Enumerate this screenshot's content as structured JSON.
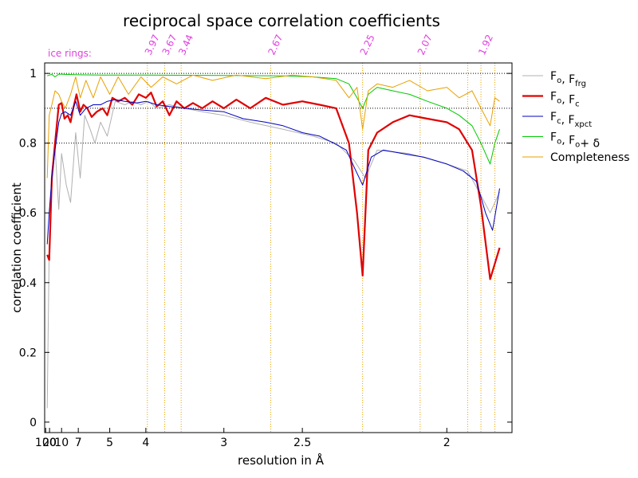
{
  "chart_data": {
    "type": "line",
    "title": "reciprocal space correlation coefficients",
    "xlabel": "resolution in Å",
    "ylabel": "correlation coefficient",
    "x_axis_scale": "1/d^2",
    "xlim_resolution": [
      -43.0,
      1.855
    ],
    "ylim": [
      -0.03,
      1.03
    ],
    "x_ticks": [
      {
        "label": "100",
        "d": 100
      },
      {
        "label": "20",
        "d": 20
      },
      {
        "label": "10",
        "d": 10
      },
      {
        "label": "7",
        "d": 7
      },
      {
        "label": "5",
        "d": 5
      },
      {
        "label": "4",
        "d": 4
      },
      {
        "label": "3",
        "d": 3
      },
      {
        "label": "2.5",
        "d": 2.5
      },
      {
        "label": "2",
        "d": 2
      }
    ],
    "y_ticks": [
      "0",
      "0.2",
      "0.4",
      "0.6",
      "0.8",
      "1"
    ],
    "grid_y": [
      0.8,
      0.9,
      1.0
    ],
    "ice_rings": {
      "label": "ice rings:",
      "rings": [
        {
          "label": "3.97",
          "d": 3.97
        },
        {
          "label": "3.67",
          "d": 3.67
        },
        {
          "label": "3.44",
          "d": 3.44
        },
        {
          "label": "2.67",
          "d": 2.67
        },
        {
          "label": "2.25",
          "d": 2.25
        },
        {
          "label": "2.07",
          "d": 2.07
        },
        {
          "label": "1.92",
          "d": 1.92
        },
        {
          "label": "",
          "d": 1.95
        },
        {
          "label": "",
          "d": 1.89
        }
      ]
    },
    "legend_position": "right",
    "series": [
      {
        "name": "Fo, Ffrg",
        "legend": {
          "main": "F",
          "sub1": "o",
          "mid": ", F",
          "sub2": "frg",
          "tail": ""
        },
        "color": "#b0b0b0",
        "stroke_width": 1,
        "points": [
          [
            31,
            0.04
          ],
          [
            21,
            0.5
          ],
          [
            16,
            0.72
          ],
          [
            13,
            0.79
          ],
          [
            11,
            0.61
          ],
          [
            10,
            0.77
          ],
          [
            8.8,
            0.68
          ],
          [
            8,
            0.63
          ],
          [
            7.3,
            0.83
          ],
          [
            6.8,
            0.7
          ],
          [
            6.4,
            0.88
          ],
          [
            6.0,
            0.84
          ],
          [
            5.7,
            0.8
          ],
          [
            5.4,
            0.86
          ],
          [
            5.1,
            0.82
          ],
          [
            4.8,
            0.92
          ],
          [
            4.5,
            0.91
          ],
          [
            4.3,
            0.92
          ],
          [
            4.1,
            0.91
          ],
          [
            3.95,
            0.92
          ],
          [
            3.8,
            0.9
          ],
          [
            3.6,
            0.91
          ],
          [
            3.4,
            0.9
          ],
          [
            3.2,
            0.89
          ],
          [
            3.0,
            0.88
          ],
          [
            2.8,
            0.86
          ],
          [
            2.6,
            0.84
          ],
          [
            2.45,
            0.82
          ],
          [
            2.35,
            0.8
          ],
          [
            2.28,
            0.75
          ],
          [
            2.24,
            0.7
          ],
          [
            2.2,
            0.78
          ],
          [
            2.1,
            0.77
          ],
          [
            2.0,
            0.74
          ],
          [
            1.95,
            0.72
          ],
          [
            1.92,
            0.65
          ],
          [
            1.9,
            0.6
          ],
          [
            1.88,
            0.66
          ]
        ]
      },
      {
        "name": "Fo, Fc",
        "legend": {
          "main": "F",
          "sub1": "o",
          "mid": ", F",
          "sub2": "c",
          "tail": ""
        },
        "color": "#e00000",
        "stroke_width": 2.2,
        "points": [
          [
            31,
            0.48
          ],
          [
            21,
            0.465
          ],
          [
            16,
            0.7
          ],
          [
            13,
            0.8
          ],
          [
            11,
            0.91
          ],
          [
            10,
            0.915
          ],
          [
            9.2,
            0.87
          ],
          [
            8.5,
            0.88
          ],
          [
            8,
            0.86
          ],
          [
            7.6,
            0.9
          ],
          [
            7.2,
            0.94
          ],
          [
            6.8,
            0.89
          ],
          [
            6.5,
            0.91
          ],
          [
            6.2,
            0.9
          ],
          [
            5.9,
            0.875
          ],
          [
            5.6,
            0.89
          ],
          [
            5.3,
            0.9
          ],
          [
            5.1,
            0.88
          ],
          [
            4.9,
            0.93
          ],
          [
            4.7,
            0.92
          ],
          [
            4.5,
            0.93
          ],
          [
            4.3,
            0.91
          ],
          [
            4.15,
            0.94
          ],
          [
            4.0,
            0.93
          ],
          [
            3.9,
            0.945
          ],
          [
            3.8,
            0.905
          ],
          [
            3.7,
            0.92
          ],
          [
            3.6,
            0.88
          ],
          [
            3.5,
            0.92
          ],
          [
            3.4,
            0.9
          ],
          [
            3.3,
            0.915
          ],
          [
            3.2,
            0.9
          ],
          [
            3.1,
            0.92
          ],
          [
            3.0,
            0.9
          ],
          [
            2.9,
            0.925
          ],
          [
            2.8,
            0.9
          ],
          [
            2.7,
            0.93
          ],
          [
            2.6,
            0.91
          ],
          [
            2.5,
            0.92
          ],
          [
            2.42,
            0.91
          ],
          [
            2.35,
            0.9
          ],
          [
            2.3,
            0.8
          ],
          [
            2.27,
            0.6
          ],
          [
            2.25,
            0.42
          ],
          [
            2.23,
            0.78
          ],
          [
            2.2,
            0.83
          ],
          [
            2.15,
            0.86
          ],
          [
            2.1,
            0.88
          ],
          [
            2.05,
            0.87
          ],
          [
            2.0,
            0.86
          ],
          [
            1.97,
            0.84
          ],
          [
            1.94,
            0.78
          ],
          [
            1.92,
            0.62
          ],
          [
            1.9,
            0.41
          ],
          [
            1.88,
            0.5
          ]
        ]
      },
      {
        "name": "Fc, Fxpct",
        "legend": {
          "main": "F",
          "sub1": "c",
          "mid": ", F",
          "sub2": "xpct",
          "tail": ""
        },
        "color": "#0000c0",
        "stroke_width": 1,
        "points": [
          [
            31,
            0.51
          ],
          [
            21,
            0.6
          ],
          [
            16,
            0.7
          ],
          [
            13,
            0.78
          ],
          [
            11,
            0.86
          ],
          [
            10,
            0.885
          ],
          [
            9,
            0.89
          ],
          [
            8,
            0.88
          ],
          [
            7.3,
            0.92
          ],
          [
            6.8,
            0.88
          ],
          [
            6.3,
            0.9
          ],
          [
            5.8,
            0.91
          ],
          [
            5.4,
            0.91
          ],
          [
            5.1,
            0.92
          ],
          [
            4.8,
            0.925
          ],
          [
            4.5,
            0.92
          ],
          [
            4.2,
            0.915
          ],
          [
            4.0,
            0.92
          ],
          [
            3.8,
            0.91
          ],
          [
            3.6,
            0.905
          ],
          [
            3.4,
            0.9
          ],
          [
            3.2,
            0.895
          ],
          [
            3.0,
            0.89
          ],
          [
            2.85,
            0.87
          ],
          [
            2.7,
            0.86
          ],
          [
            2.6,
            0.85
          ],
          [
            2.5,
            0.83
          ],
          [
            2.42,
            0.82
          ],
          [
            2.36,
            0.8
          ],
          [
            2.31,
            0.78
          ],
          [
            2.28,
            0.73
          ],
          [
            2.25,
            0.68
          ],
          [
            2.22,
            0.76
          ],
          [
            2.18,
            0.78
          ],
          [
            2.12,
            0.77
          ],
          [
            2.06,
            0.76
          ],
          [
            2.0,
            0.74
          ],
          [
            1.96,
            0.72
          ],
          [
            1.93,
            0.69
          ],
          [
            1.91,
            0.6
          ],
          [
            1.895,
            0.55
          ],
          [
            1.88,
            0.67
          ]
        ]
      },
      {
        "name": "Fo, Fo+ δ",
        "legend": {
          "main": "F",
          "sub1": "o",
          "mid": ", F",
          "sub2": "o",
          "tail": "+ δ"
        },
        "color": "#00c800",
        "stroke_width": 1,
        "points": [
          [
            31,
            0.993
          ],
          [
            21,
            0.995
          ],
          [
            16,
            0.997
          ],
          [
            13,
            0.99
          ],
          [
            11,
            0.998
          ],
          [
            9,
            0.997
          ],
          [
            7,
            0.996
          ],
          [
            5,
            0.995
          ],
          [
            4,
            0.995
          ],
          [
            3,
            0.994
          ],
          [
            2.6,
            0.993
          ],
          [
            2.45,
            0.99
          ],
          [
            2.35,
            0.985
          ],
          [
            2.3,
            0.97
          ],
          [
            2.27,
            0.93
          ],
          [
            2.25,
            0.9
          ],
          [
            2.23,
            0.94
          ],
          [
            2.2,
            0.96
          ],
          [
            2.15,
            0.95
          ],
          [
            2.1,
            0.94
          ],
          [
            2.05,
            0.92
          ],
          [
            2.0,
            0.9
          ],
          [
            1.97,
            0.88
          ],
          [
            1.94,
            0.85
          ],
          [
            1.92,
            0.8
          ],
          [
            1.9,
            0.74
          ],
          [
            1.89,
            0.8
          ],
          [
            1.88,
            0.84
          ]
        ]
      },
      {
        "name": "Completeness",
        "legend": {
          "main": "Completeness",
          "sub1": "",
          "mid": "",
          "sub2": "",
          "tail": ""
        },
        "color": "#e8a000",
        "stroke_width": 1,
        "points": [
          [
            31,
            0.7
          ],
          [
            21,
            0.88
          ],
          [
            16,
            0.91
          ],
          [
            13,
            0.95
          ],
          [
            11,
            0.94
          ],
          [
            10,
            0.92
          ],
          [
            9,
            0.9
          ],
          [
            8,
            0.94
          ],
          [
            7.3,
            0.99
          ],
          [
            6.8,
            0.93
          ],
          [
            6.3,
            0.98
          ],
          [
            5.8,
            0.93
          ],
          [
            5.4,
            0.99
          ],
          [
            5.0,
            0.94
          ],
          [
            4.7,
            0.99
          ],
          [
            4.4,
            0.94
          ],
          [
            4.1,
            0.99
          ],
          [
            3.9,
            0.96
          ],
          [
            3.7,
            0.99
          ],
          [
            3.5,
            0.97
          ],
          [
            3.3,
            0.995
          ],
          [
            3.1,
            0.98
          ],
          [
            2.9,
            0.995
          ],
          [
            2.7,
            0.985
          ],
          [
            2.55,
            0.995
          ],
          [
            2.45,
            0.99
          ],
          [
            2.35,
            0.98
          ],
          [
            2.3,
            0.93
          ],
          [
            2.27,
            0.96
          ],
          [
            2.25,
            0.84
          ],
          [
            2.23,
            0.95
          ],
          [
            2.2,
            0.97
          ],
          [
            2.15,
            0.96
          ],
          [
            2.1,
            0.98
          ],
          [
            2.05,
            0.95
          ],
          [
            2.0,
            0.96
          ],
          [
            1.97,
            0.93
          ],
          [
            1.94,
            0.95
          ],
          [
            1.92,
            0.9
          ],
          [
            1.9,
            0.85
          ],
          [
            1.89,
            0.93
          ],
          [
            1.88,
            0.92
          ]
        ]
      }
    ]
  }
}
